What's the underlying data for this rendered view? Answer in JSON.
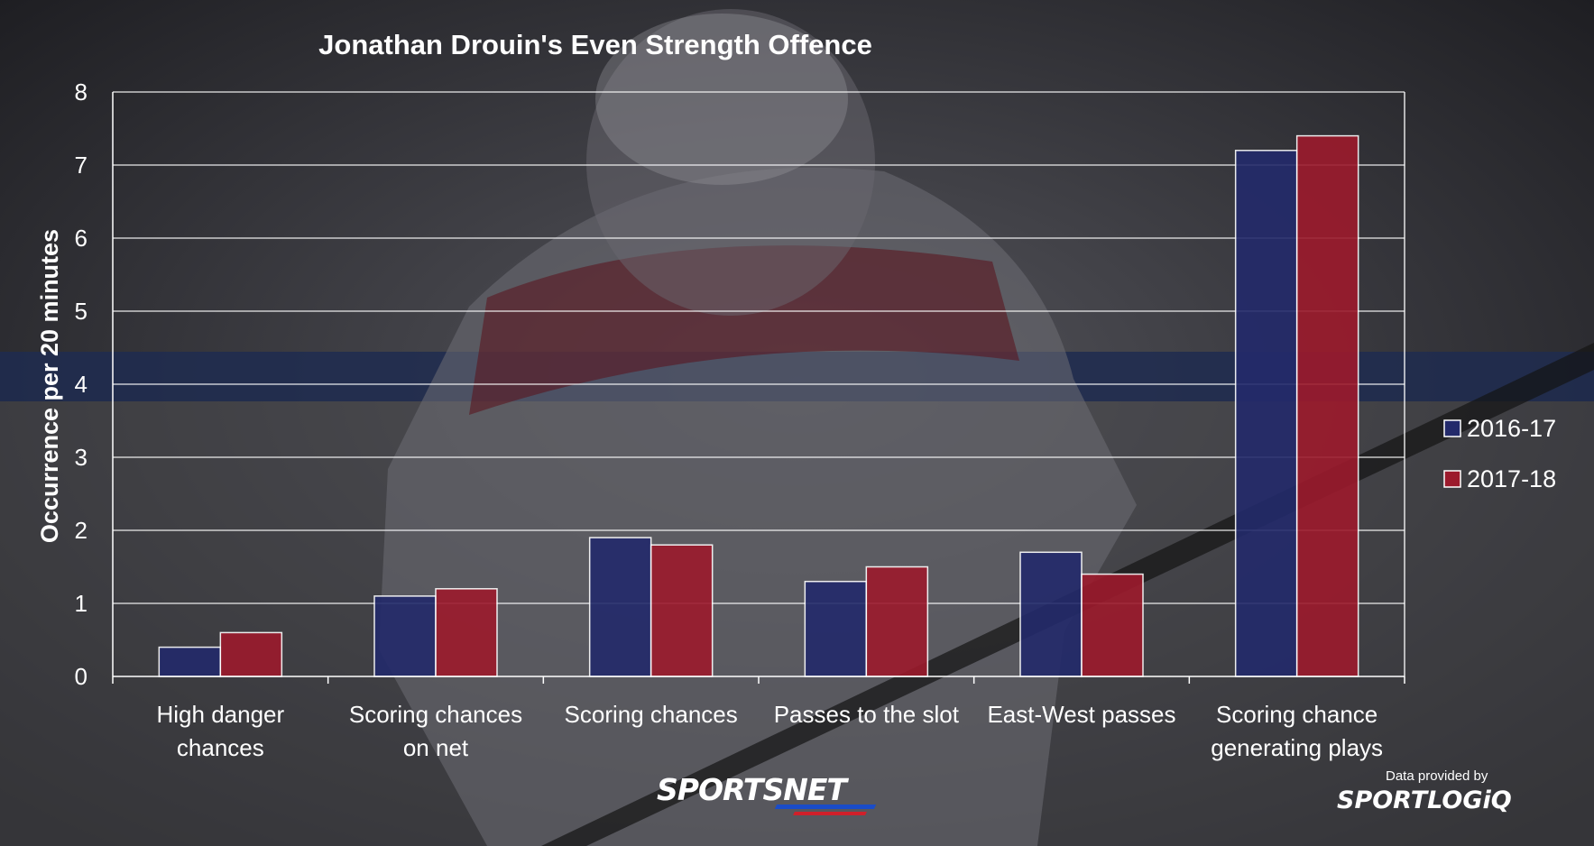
{
  "chart_data": {
    "type": "bar",
    "title": "Jonathan Drouin's Even Strength Offence",
    "ylabel": "Occurrence per 20 minutes",
    "xlabel": "",
    "ylim": [
      0,
      8
    ],
    "yticks": [
      "0",
      "1",
      "2",
      "3",
      "4",
      "5",
      "6",
      "7",
      "8"
    ],
    "grid": true,
    "legend_position": "right",
    "categories": [
      [
        "High danger",
        "chances"
      ],
      [
        "Scoring chances",
        "on net"
      ],
      [
        "Scoring chances"
      ],
      [
        "Passes to the slot"
      ],
      [
        "East-West passes"
      ],
      [
        "Scoring chance",
        "generating plays"
      ]
    ],
    "series": [
      {
        "name": "2016-17",
        "color": "#232a6b",
        "values": [
          0.4,
          1.1,
          1.9,
          1.3,
          1.7,
          7.2
        ]
      },
      {
        "name": "2017-18",
        "color": "#9c1a2c",
        "values": [
          0.6,
          1.2,
          1.8,
          1.5,
          1.4,
          7.4
        ]
      }
    ]
  },
  "branding": {
    "broadcaster_logo": "SPORTSNET",
    "credit_text": "Data provided by",
    "data_logo": "SPORTLOGiQ"
  }
}
